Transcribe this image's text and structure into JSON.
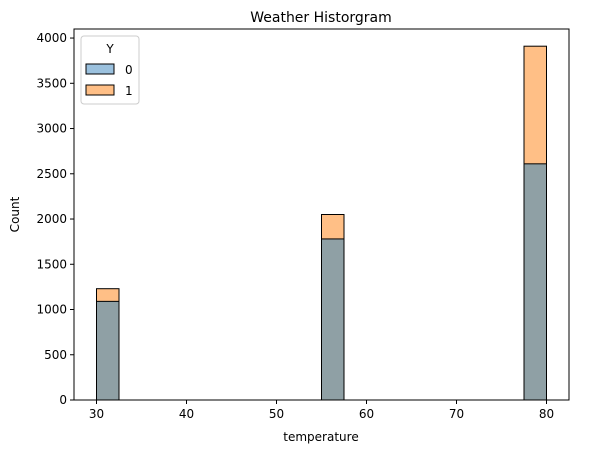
{
  "chart_data": {
    "type": "bar",
    "title": "Weather Historgram",
    "xlabel": "temperature",
    "ylabel": "Count",
    "xlim": [
      27.5,
      82.5
    ],
    "ylim": [
      0,
      4100
    ],
    "xticks": [
      30,
      40,
      50,
      60,
      70,
      80
    ],
    "yticks": [
      0,
      500,
      1000,
      1500,
      2000,
      2500,
      3000,
      3500,
      4000
    ],
    "legend": {
      "title": "Y",
      "position": "top-left"
    },
    "bins": [
      {
        "x0": 30.0,
        "x1": 32.5
      },
      {
        "x0": 55.0,
        "x1": 57.5
      },
      {
        "x0": 77.5,
        "x1": 80.0
      }
    ],
    "series": [
      {
        "name": "0",
        "color": "#8fa0a5",
        "legend_color": "#9bc1de",
        "values": [
          1090,
          1780,
          2610
        ]
      },
      {
        "name": "1",
        "color": "#ffbf86",
        "legend_color": "#ffbf86",
        "values": [
          1230,
          2050,
          3910
        ]
      }
    ],
    "grid": false
  }
}
